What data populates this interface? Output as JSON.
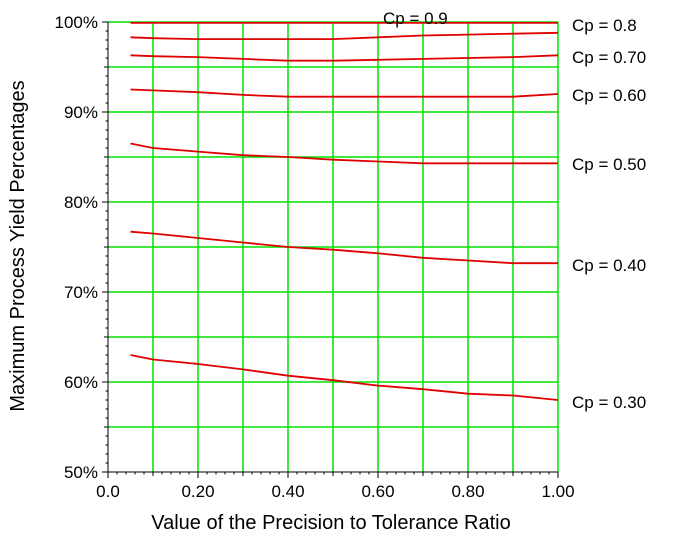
{
  "chart_data": {
    "type": "line",
    "title": "",
    "xlabel": "Value of the Precision to Tolerance Ratio",
    "ylabel": "Maximum Process Yield Percentages",
    "xlim": [
      0.0,
      1.0
    ],
    "ylim": [
      50,
      100
    ],
    "x_ticks": [
      "0.0",
      "0.20",
      "0.40",
      "0.60",
      "0.80",
      "1.00"
    ],
    "x_tick_values": [
      0.0,
      0.2,
      0.4,
      0.6,
      0.8,
      1.0
    ],
    "y_ticks": [
      "50%",
      "60%",
      "70%",
      "80%",
      "90%",
      "100%"
    ],
    "y_tick_values": [
      50,
      60,
      70,
      80,
      90,
      100
    ],
    "grid": true,
    "x_gridlines": [
      0.1,
      0.2,
      0.3,
      0.4,
      0.5,
      0.6,
      0.7,
      0.8,
      0.9,
      1.0
    ],
    "y_gridlines": [
      55,
      60,
      65,
      70,
      75,
      80,
      85,
      90,
      95,
      100
    ],
    "colors": {
      "grid": "#00e000",
      "series": "#e00000",
      "axis": "#000000"
    },
    "series": [
      {
        "name": "Cp = 0.9",
        "x": [
          0.05,
          0.1,
          0.2,
          0.3,
          0.4,
          0.5,
          0.6,
          0.7,
          0.8,
          0.9,
          1.0
        ],
        "values": [
          99.9,
          99.9,
          99.9,
          99.9,
          99.9,
          99.9,
          99.9,
          99.9,
          99.9,
          99.9,
          99.9
        ]
      },
      {
        "name": "Cp = 0.8",
        "x": [
          0.05,
          0.1,
          0.2,
          0.3,
          0.4,
          0.5,
          0.6,
          0.7,
          0.8,
          0.9,
          1.0
        ],
        "values": [
          98.3,
          98.2,
          98.1,
          98.1,
          98.1,
          98.1,
          98.3,
          98.5,
          98.6,
          98.7,
          98.8
        ]
      },
      {
        "name": "Cp = 0.70",
        "x": [
          0.05,
          0.1,
          0.2,
          0.3,
          0.4,
          0.5,
          0.6,
          0.7,
          0.8,
          0.9,
          1.0
        ],
        "values": [
          96.3,
          96.2,
          96.1,
          95.9,
          95.7,
          95.7,
          95.8,
          95.9,
          96.0,
          96.1,
          96.3
        ]
      },
      {
        "name": "Cp = 0.60",
        "x": [
          0.05,
          0.1,
          0.2,
          0.3,
          0.4,
          0.5,
          0.6,
          0.7,
          0.8,
          0.9,
          1.0
        ],
        "values": [
          92.5,
          92.4,
          92.2,
          91.9,
          91.7,
          91.7,
          91.7,
          91.7,
          91.7,
          91.7,
          92.0
        ]
      },
      {
        "name": "Cp = 0.50",
        "x": [
          0.05,
          0.1,
          0.2,
          0.3,
          0.4,
          0.5,
          0.6,
          0.7,
          0.8,
          0.9,
          1.0
        ],
        "values": [
          86.5,
          86.0,
          85.6,
          85.2,
          85.0,
          84.7,
          84.5,
          84.3,
          84.3,
          84.3,
          84.3
        ]
      },
      {
        "name": "Cp = 0.40",
        "x": [
          0.05,
          0.1,
          0.2,
          0.3,
          0.4,
          0.5,
          0.6,
          0.7,
          0.8,
          0.9,
          1.0
        ],
        "values": [
          76.7,
          76.5,
          76.0,
          75.5,
          75.0,
          74.7,
          74.3,
          73.8,
          73.5,
          73.2,
          73.2
        ]
      },
      {
        "name": "Cp = 0.30",
        "x": [
          0.05,
          0.1,
          0.2,
          0.3,
          0.4,
          0.5,
          0.6,
          0.7,
          0.8,
          0.9,
          1.0
        ],
        "values": [
          63.0,
          62.5,
          62.0,
          61.4,
          60.7,
          60.2,
          59.6,
          59.2,
          58.7,
          58.5,
          58.0
        ]
      }
    ]
  }
}
